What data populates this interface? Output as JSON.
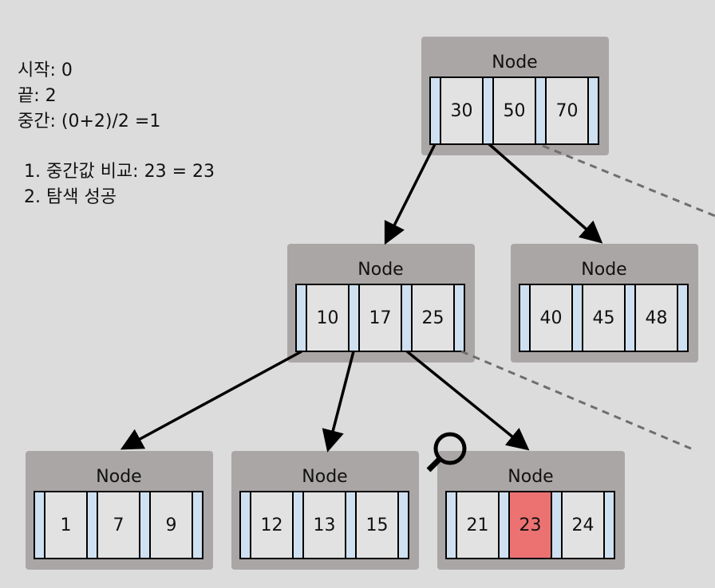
{
  "info": {
    "lines": [
      "시작: 0",
      "끝: 2",
      "중간: (0+2)/2 =1"
    ],
    "steps": [
      "1. 중간값 비교: 23 = 23",
      "2. 탐색 성공"
    ]
  },
  "nodes": [
    {
      "title": "Node",
      "keys": [
        "30",
        "50",
        "70"
      ]
    },
    {
      "title": "Node",
      "keys": [
        "10",
        "17",
        "25"
      ]
    },
    {
      "title": "Node",
      "keys": [
        "40",
        "45",
        "48"
      ]
    },
    {
      "title": "Node",
      "keys": [
        "1",
        "7",
        "9"
      ]
    },
    {
      "title": "Node",
      "keys": [
        "12",
        "13",
        "15"
      ]
    },
    {
      "title": "Node",
      "keys": [
        "21",
        {
          "text": "23",
          "fill": "#ec7272"
        },
        "24"
      ]
    }
  ]
}
